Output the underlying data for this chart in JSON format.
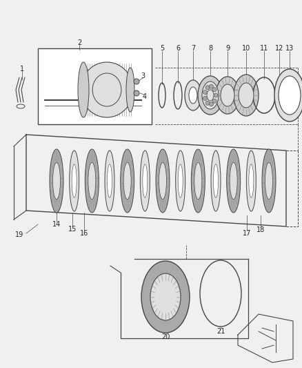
{
  "bg_color": "#f0f0f0",
  "fig_width": 4.38,
  "fig_height": 5.33,
  "dpi": 100,
  "line_color": "#444444",
  "text_color": "#222222",
  "font_size": 7.0,
  "gray_dark": "#888888",
  "gray_med": "#aaaaaa",
  "gray_light": "#cccccc",
  "gray_lighter": "#e0e0e0",
  "white": "#ffffff"
}
